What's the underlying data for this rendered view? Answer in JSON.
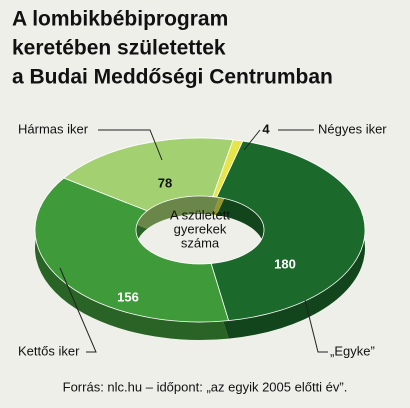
{
  "chart_data": {
    "type": "donut",
    "title": [
      "A lombikbébiprogram",
      "keretében születettek",
      "a Budai Meddőségi Centrumban"
    ],
    "center_label": [
      "A született",
      "gyerekek",
      "száma"
    ],
    "categories": [
      "„Egyke”",
      "Kettős iker",
      "Hármas iker",
      "Négyes iker"
    ],
    "values": [
      180,
      156,
      78,
      4
    ],
    "colors": [
      "#1c6a2b",
      "#3f9a3a",
      "#a3d070",
      "#e6e64a"
    ],
    "source": "Forrás: nlc.hu – időpont: „az egyik 2005 előtti év”."
  }
}
